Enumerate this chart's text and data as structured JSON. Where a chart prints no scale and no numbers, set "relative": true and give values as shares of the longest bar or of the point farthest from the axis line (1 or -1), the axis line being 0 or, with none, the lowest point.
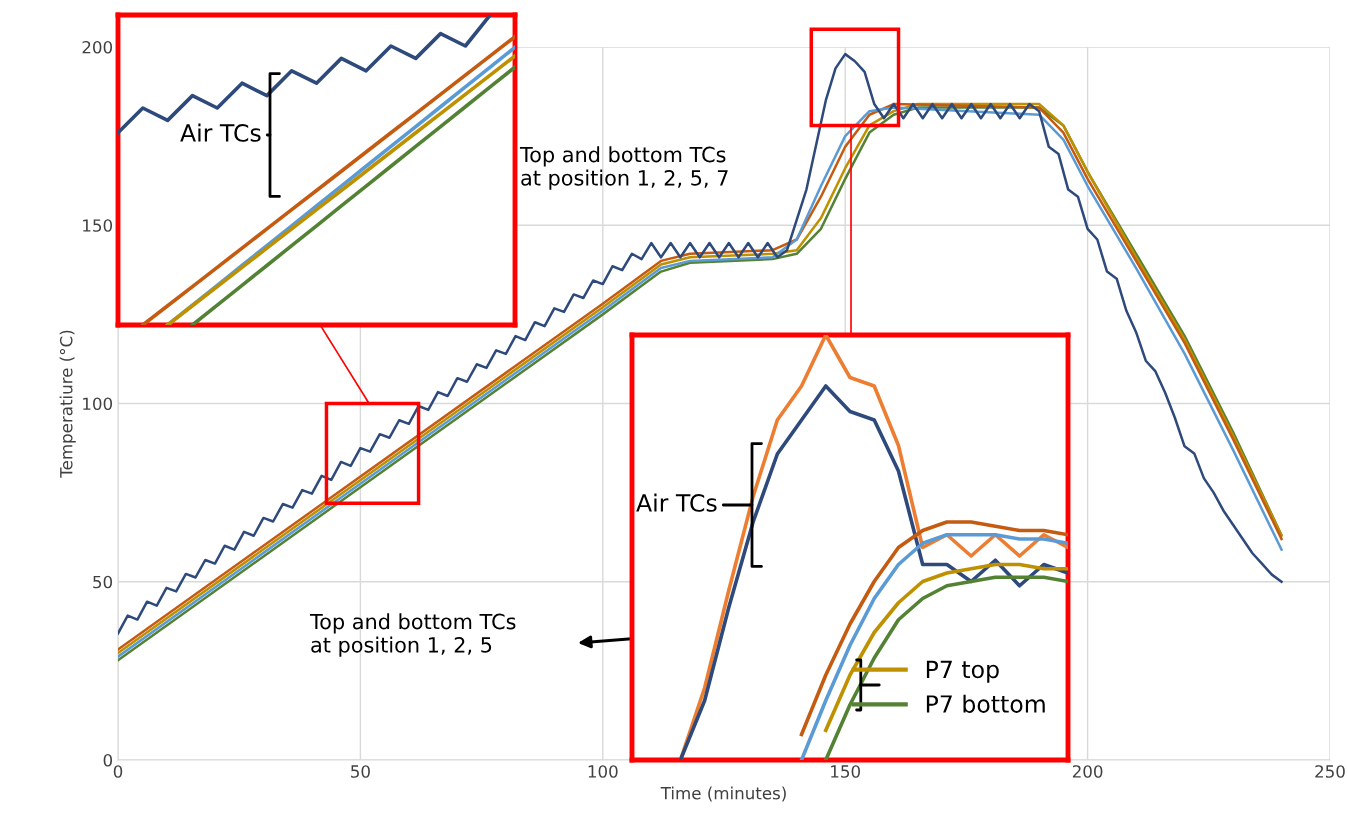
{
  "chart_data": [
    {
      "type": "line",
      "xlabel": "Time (minutes)",
      "ylabel": "Temperatiure (°C)",
      "xlim": [
        0,
        250
      ],
      "ylim": [
        0,
        200
      ],
      "xticks": [
        0,
        50,
        100,
        150,
        200,
        250
      ],
      "yticks": [
        0,
        50,
        100,
        150,
        200
      ],
      "grid": true,
      "legend": false,
      "series": [
        {
          "color": "#548235",
          "x": [
            0,
            100,
            108,
            112,
            118,
            135,
            140,
            145,
            150,
            155,
            160,
            165,
            190,
            195,
            200,
            210,
            220,
            230,
            240
          ],
          "values": [
            28,
            125,
            133,
            137,
            139.5,
            140.5,
            142,
            149,
            163,
            176,
            181,
            183,
            183,
            178,
            165,
            142,
            119,
            92,
            63
          ]
        },
        {
          "color": "#bf9000",
          "x": [
            0,
            100,
            108,
            112,
            118,
            135,
            140,
            145,
            150,
            155,
            160,
            165,
            190,
            195,
            200,
            210,
            220,
            230,
            240
          ],
          "values": [
            30,
            127,
            135,
            139,
            141,
            142,
            143,
            152,
            166,
            178,
            182,
            184,
            184,
            178,
            165,
            141,
            118,
            91,
            63
          ]
        },
        {
          "color": "#c55a11",
          "x": [
            0,
            100,
            108,
            112,
            118,
            135,
            140,
            145,
            150,
            155,
            160,
            190,
            195,
            200,
            210,
            220,
            230,
            240
          ],
          "values": [
            31,
            128,
            136,
            140,
            142,
            143,
            146,
            158,
            172,
            181,
            184,
            183,
            176,
            163,
            140,
            117,
            90,
            62
          ]
        },
        {
          "color": "#5b9bd5",
          "x": [
            0,
            100,
            108,
            112,
            118,
            135,
            140,
            145,
            150,
            155,
            160,
            190,
            195,
            200,
            210,
            220,
            230,
            240
          ],
          "values": [
            29,
            126,
            134,
            138,
            140,
            141,
            146,
            161,
            175,
            182,
            183,
            181,
            174,
            161,
            138,
            114,
            87,
            59
          ]
        },
        {
          "color": "#2e4a7d",
          "x": [
            0,
            2,
            4,
            6,
            8,
            10,
            12,
            14,
            16,
            18,
            20,
            22,
            24,
            26,
            28,
            30,
            32,
            34,
            36,
            38,
            40,
            42,
            44,
            46,
            48,
            50,
            52,
            54,
            56,
            58,
            60,
            62,
            64,
            66,
            68,
            70,
            72,
            74,
            76,
            78,
            80,
            82,
            84,
            86,
            88,
            90,
            92,
            94,
            96,
            98,
            100,
            102,
            104,
            106,
            108,
            110,
            112,
            114,
            116,
            118,
            120,
            122,
            124,
            126,
            128,
            130,
            132,
            134,
            136,
            138,
            142,
            146,
            148,
            150,
            152,
            154,
            156,
            158,
            160,
            162,
            164,
            166,
            168,
            170,
            172,
            174,
            176,
            178,
            180,
            182,
            184,
            186,
            188,
            190,
            192,
            194,
            196,
            198,
            200,
            202,
            204,
            206,
            208,
            210,
            212,
            214,
            216,
            218,
            220,
            222,
            224,
            226,
            228,
            230,
            232,
            234,
            236,
            238,
            240
          ],
          "values": [
            35.5,
            40.5,
            39.4,
            44.4,
            43.3,
            48.3,
            47.3,
            52.2,
            51.2,
            56.1,
            55.1,
            60.1,
            59,
            64,
            62.9,
            67.9,
            66.9,
            71.8,
            70.8,
            75.7,
            74.7,
            79.7,
            78.6,
            83.6,
            82.5,
            87.5,
            86.5,
            91.4,
            90.4,
            95.3,
            94.3,
            99.3,
            98.2,
            103.2,
            102.1,
            107.1,
            106.1,
            111,
            110,
            114.9,
            113.9,
            118.9,
            117.8,
            122.8,
            121.7,
            126.7,
            125.7,
            130.6,
            129.6,
            134.5,
            133.5,
            138.5,
            137.4,
            142,
            140.5,
            145,
            141,
            145,
            141,
            145,
            141,
            145,
            141,
            145,
            141,
            145,
            141,
            145,
            141,
            143,
            160,
            185,
            194,
            198,
            196,
            193,
            184,
            180,
            184,
            180,
            184,
            180,
            184,
            180,
            184,
            180,
            184,
            180,
            184,
            180,
            184,
            180,
            184,
            182,
            172,
            170,
            160,
            158,
            149,
            146,
            137,
            135,
            126,
            120,
            112,
            109,
            103,
            96,
            88,
            86,
            79,
            75,
            70,
            66,
            62,
            58,
            55,
            52,
            50
          ]
        }
      ],
      "annotations": [
        "Top and bottom TCs\nat position 1, 2, 5, 7",
        "Top and bottom TCs\nat position 1, 2, 5"
      ]
    },
    {
      "type": "line",
      "relative": true,
      "legend": false,
      "categories": [
        null,
        null,
        null,
        null,
        null,
        null,
        null,
        null,
        null,
        null,
        null,
        null,
        null,
        null,
        null,
        null,
        null
      ],
      "series": [
        {
          "color": "#2e4a7d",
          "values": [
            0.62,
            0.7,
            0.66,
            0.74,
            0.7,
            0.78,
            0.74,
            0.82,
            0.78,
            0.86,
            0.82,
            0.9,
            0.86,
            0.94,
            0.9,
            1.0,
            null
          ]
        },
        {
          "color": "#c55a11",
          "values": [
            null,
            0,
            0.062,
            0.124,
            0.186,
            0.248,
            0.31,
            0.372,
            0.434,
            0.496,
            0.558,
            0.62,
            0.682,
            0.744,
            0.806,
            0.868,
            0.93
          ]
        },
        {
          "color": "#5b9bd5",
          "values": [
            null,
            null,
            0,
            0.064,
            0.128,
            0.192,
            0.256,
            0.32,
            0.384,
            0.448,
            0.512,
            0.576,
            0.64,
            0.704,
            0.768,
            0.832,
            0.896
          ]
        },
        {
          "color": "#bf9000",
          "values": [
            null,
            null,
            0,
            0.062,
            0.124,
            0.186,
            0.248,
            0.31,
            0.372,
            0.434,
            0.496,
            0.558,
            0.62,
            0.682,
            0.744,
            0.806,
            0.868
          ]
        },
        {
          "color": "#548235",
          "values": [
            null,
            null,
            null,
            0,
            0.064,
            0.128,
            0.192,
            0.256,
            0.32,
            0.384,
            0.448,
            0.512,
            0.576,
            0.64,
            0.704,
            0.768,
            0.832
          ]
        }
      ],
      "annotations": [
        "Air TCs"
      ]
    },
    {
      "type": "line",
      "relative": true,
      "legend": "lower right",
      "categories": [
        null,
        null,
        null,
        null,
        null,
        null,
        null,
        null,
        null,
        null,
        null,
        null,
        null,
        null,
        null,
        null,
        null,
        null,
        null
      ],
      "series": [
        {
          "color": "#ed7d31",
          "values": [
            null,
            null,
            0,
            0.17,
            0.4,
            0.62,
            0.8,
            0.88,
            1.0,
            0.9,
            0.88,
            0.74,
            0.5,
            0.53,
            0.48,
            0.53,
            0.48,
            0.53,
            0.5
          ]
        },
        {
          "color": "#2e4a7d",
          "values": [
            null,
            null,
            0,
            0.14,
            0.36,
            0.56,
            0.72,
            0.8,
            0.88,
            0.82,
            0.8,
            0.68,
            0.46,
            0.46,
            0.42,
            0.47,
            0.41,
            0.46,
            0.44
          ]
        },
        {
          "color": "#c55a11",
          "values": [
            null,
            null,
            null,
            null,
            null,
            null,
            null,
            0.06,
            0.2,
            0.32,
            0.42,
            0.5,
            0.54,
            0.56,
            0.56,
            0.55,
            0.54,
            0.54,
            0.53
          ]
        },
        {
          "color": "#5b9bd5",
          "values": [
            null,
            null,
            null,
            null,
            null,
            null,
            null,
            0,
            0.14,
            0.27,
            0.38,
            0.46,
            0.51,
            0.53,
            0.53,
            0.53,
            0.52,
            0.52,
            0.51
          ]
        },
        {
          "name": "P7 top",
          "color": "#bf9000",
          "values": [
            null,
            null,
            null,
            null,
            null,
            null,
            null,
            null,
            0.07,
            0.2,
            0.3,
            0.37,
            0.42,
            0.44,
            0.45,
            0.46,
            0.46,
            0.45,
            0.45
          ]
        },
        {
          "name": "P7 bottom",
          "color": "#548235",
          "values": [
            null,
            null,
            null,
            null,
            null,
            null,
            null,
            null,
            0,
            0.13,
            0.24,
            0.33,
            0.38,
            0.41,
            0.42,
            0.43,
            0.43,
            0.43,
            0.42
          ]
        }
      ],
      "annotations": [
        "Air TCs"
      ]
    }
  ]
}
